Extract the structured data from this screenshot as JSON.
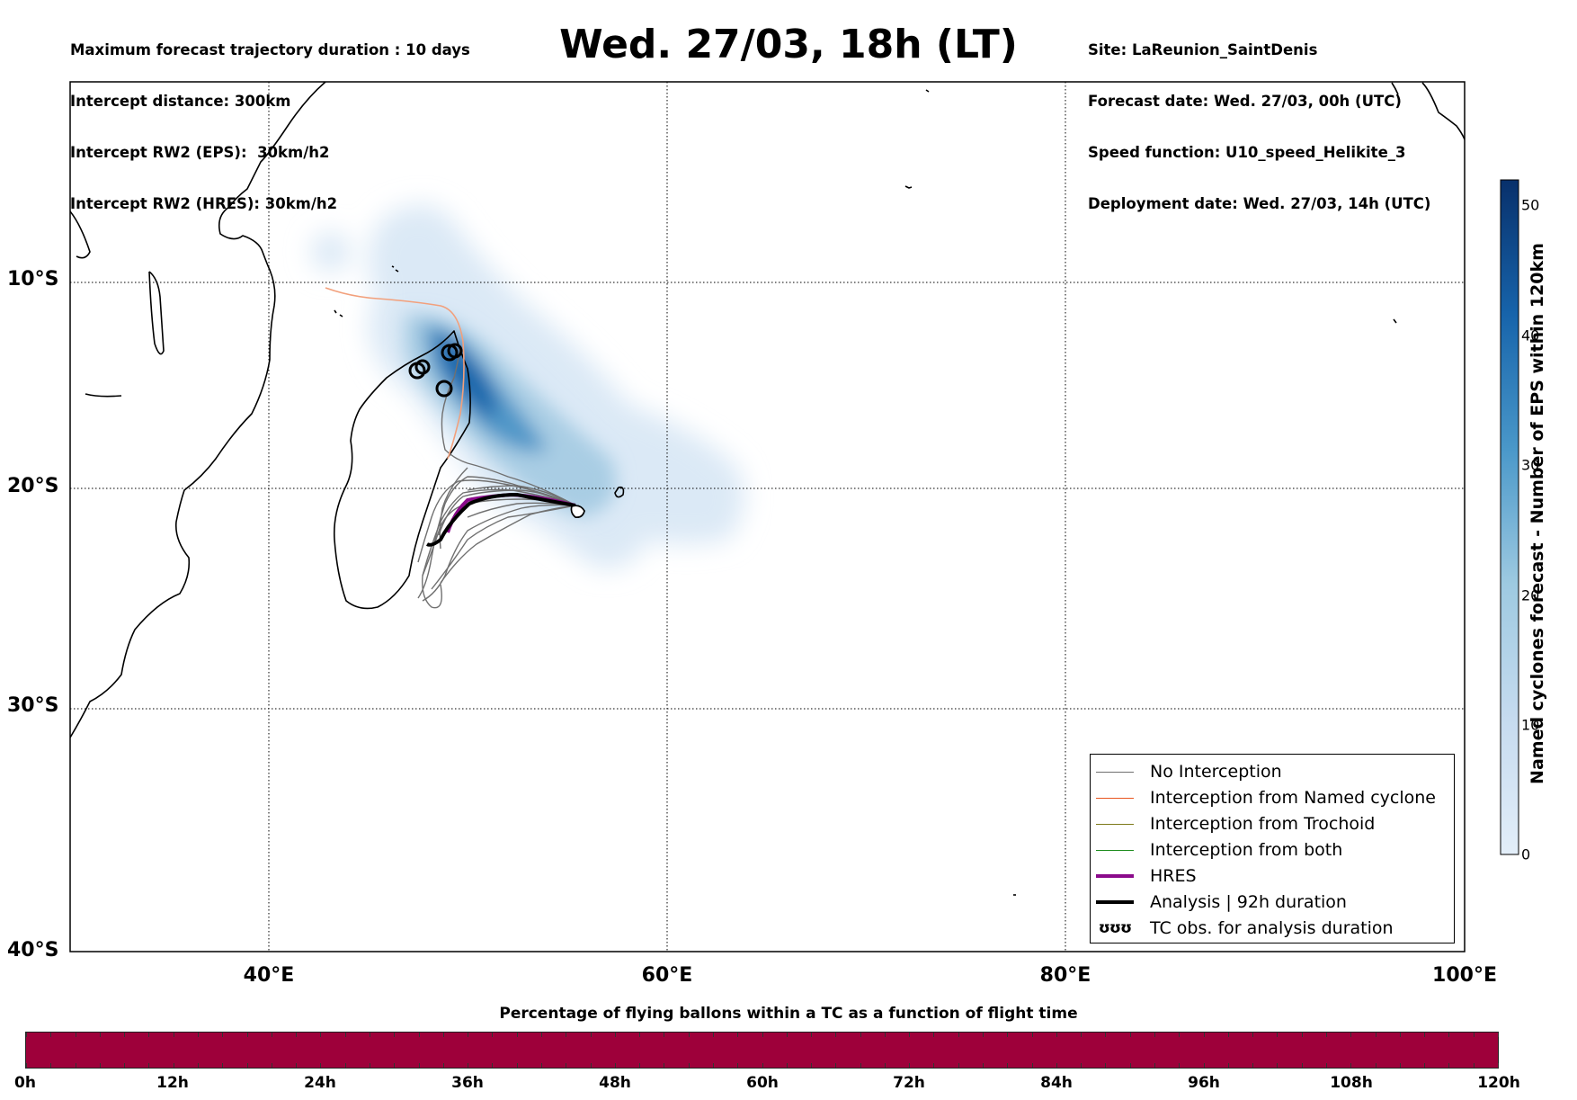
{
  "header": {
    "left_lines": [
      "Maximum forecast trajectory duration : 10 days",
      "Intercept distance: 300km",
      "Intercept RW2 (EPS):  30km/h2",
      "Intercept RW2 (HRES): 30km/h2"
    ],
    "right_lines": [
      "Site: LaReunion_SaintDenis",
      "Forecast date: Wed. 27/03, 00h (UTC)",
      "Speed function: U10_speed_Helikite_3",
      "Deployment date: Wed. 27/03, 14h (UTC)"
    ],
    "title": "Wed. 27/03, 18h (LT)"
  },
  "map": {
    "lon_range": [
      30,
      100
    ],
    "lat_range": [
      -40,
      -1.3
    ],
    "lat_ticks": [
      "10°S",
      "20°S",
      "30°S",
      "40°S"
    ],
    "lon_ticks": [
      "40°E",
      "60°E",
      "80°E",
      "100°E"
    ],
    "site": "LaReunion_SaintDenis",
    "colors": {
      "coast": "#000000",
      "no_interception": "#707070",
      "named_cyclone": "#e8551f",
      "trochoid": "#7d7a1a",
      "both": "#1d8c1d",
      "hres": "#8b0a8b",
      "analysis": "#000000"
    }
  },
  "colorbar": {
    "label": "Named cyclones forecast - Number of EPS within 120km",
    "ticks": [
      "0",
      "10",
      "20",
      "30",
      "40",
      "50"
    ],
    "min": 0,
    "max": 52,
    "color_low": "#e3eef9",
    "color_high": "#08306b"
  },
  "legend": {
    "items": [
      {
        "label": "No Interception",
        "kind": "line",
        "color": "#707070",
        "width": 1.5
      },
      {
        "label": "Interception from Named cyclone",
        "kind": "line",
        "color": "#e8551f",
        "width": 1.5
      },
      {
        "label": "Interception from Trochoid",
        "kind": "line",
        "color": "#7d7a1a",
        "width": 1.5
      },
      {
        "label": "Interception from both",
        "kind": "line",
        "color": "#1d8c1d",
        "width": 1.5
      },
      {
        "label": "HRES",
        "kind": "line",
        "color": "#8b0a8b",
        "width": 4
      },
      {
        "label": "Analysis | 92h duration",
        "kind": "line",
        "color": "#000000",
        "width": 4
      },
      {
        "label": "TC obs. for analysis duration",
        "kind": "symbol",
        "symbol": "ʊʊʊ"
      }
    ]
  },
  "time_bar": {
    "title": "Percentage of flying ballons within a TC as a function of flight time",
    "ticks": [
      "0h",
      "12h",
      "24h",
      "36h",
      "48h",
      "60h",
      "72h",
      "84h",
      "96h",
      "108h",
      "120h"
    ],
    "fill_color": "#9e003a",
    "percent_in_tc": 100
  }
}
